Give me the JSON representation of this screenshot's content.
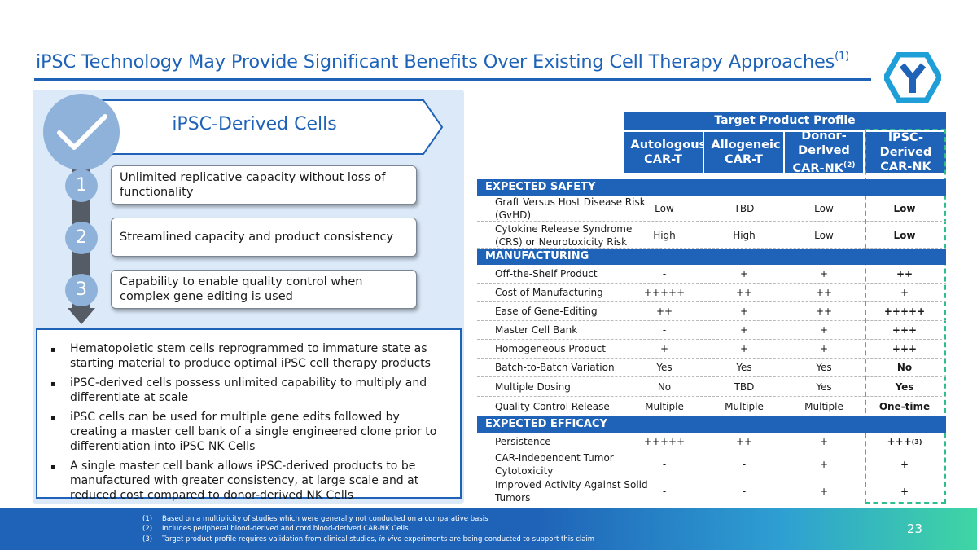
{
  "header": {
    "title": "iPSC Technology May Provide Significant Benefits Over Existing Cell Therapy Approaches",
    "title_sup": "(1)",
    "logo_icon": "y-hexagon-logo"
  },
  "left": {
    "banner_title": "iPSC-Derived Cells",
    "benefits": [
      {
        "num": "1",
        "text": "Unlimited replicative capacity without loss of functionality"
      },
      {
        "num": "2",
        "text": "Streamlined capacity and product consistency"
      },
      {
        "num": "3",
        "text": "Capability to enable quality control when complex gene editing is used"
      }
    ],
    "bullets": [
      "Hematopoietic stem cells reprogrammed to immature state as starting material to produce optimal iPSC cell therapy products",
      "iPSC-derived cells possess unlimited capability to multiply and differentiate at scale",
      "iPSC cells can be used for multiple gene edits followed by creating a master cell bank of a single engineered clone prior to differentiation into iPSC NK Cells",
      "A single master cell bank allows iPSC-derived products to be manufactured with greater consistency, at large scale and at reduced cost compared to donor-derived NK Cells"
    ],
    "bullet_mark": "▪"
  },
  "table": {
    "group_header": "Target Product Profile",
    "columns": [
      "Autologous CAR-T",
      "Allogeneic CAR-T",
      "Donor-Derived CAR-NK",
      "iPSC-Derived CAR-NK"
    ],
    "column_sup": {
      "donor": "(2)"
    },
    "sections": {
      "safety": "EXPECTED SAFETY",
      "manufacturing": "MANUFACTURING",
      "efficacy": "EXPECTED EFFICACY"
    },
    "rows": [
      {
        "label": "Graft Versus Host Disease Risk (GvHD)",
        "values": [
          "Low",
          "TBD",
          "Low",
          "Low"
        ]
      },
      {
        "label": "Cytokine Release Syndrome (CRS) or Neurotoxicity Risk",
        "values": [
          "High",
          "High",
          "Low",
          "Low"
        ]
      },
      {
        "label": "Off-the-Shelf Product",
        "values": [
          "-",
          "+",
          "+",
          "++"
        ]
      },
      {
        "label": "Cost of Manufacturing",
        "values": [
          "+++++",
          "++",
          "++",
          "+"
        ]
      },
      {
        "label": "Ease of Gene-Editing",
        "values": [
          "++",
          "+",
          "++",
          "+++++"
        ]
      },
      {
        "label": "Master Cell Bank",
        "values": [
          "-",
          "+",
          "+",
          "+++"
        ]
      },
      {
        "label": "Homogeneous Product",
        "values": [
          "+",
          "+",
          "+",
          "+++"
        ]
      },
      {
        "label": "Batch-to-Batch Variation",
        "values": [
          "Yes",
          "Yes",
          "Yes",
          "No"
        ]
      },
      {
        "label": "Multiple Dosing",
        "values": [
          "No",
          "TBD",
          "Yes",
          "Yes"
        ]
      },
      {
        "label": "Quality Control Release",
        "values": [
          "Multiple",
          "Multiple",
          "Multiple",
          "One-time"
        ]
      },
      {
        "label": "Persistence",
        "values": [
          "+++++",
          "++",
          "+",
          "+++"
        ],
        "sup": "(3)"
      },
      {
        "label": "CAR-Independent Tumor Cytotoxicity",
        "values": [
          "-",
          "-",
          "+",
          "+"
        ]
      },
      {
        "label": "Improved Activity Against Solid Tumors",
        "values": [
          "-",
          "-",
          "+",
          "+"
        ]
      }
    ]
  },
  "footer": {
    "notes": [
      {
        "num": "(1)",
        "text": "Based on a multiplicity of studies which were generally not conducted on a comparative basis"
      },
      {
        "num": "(2)",
        "text": "Includes peripheral blood-derived and cord blood-derived CAR-NK Cells"
      },
      {
        "num": "(3)",
        "text_before": "Target product profile requires validation from clinical studies, ",
        "text_italic": "in vivo",
        "text_after": " experiments are being conducted to support this claim"
      }
    ],
    "page_number": "23"
  }
}
